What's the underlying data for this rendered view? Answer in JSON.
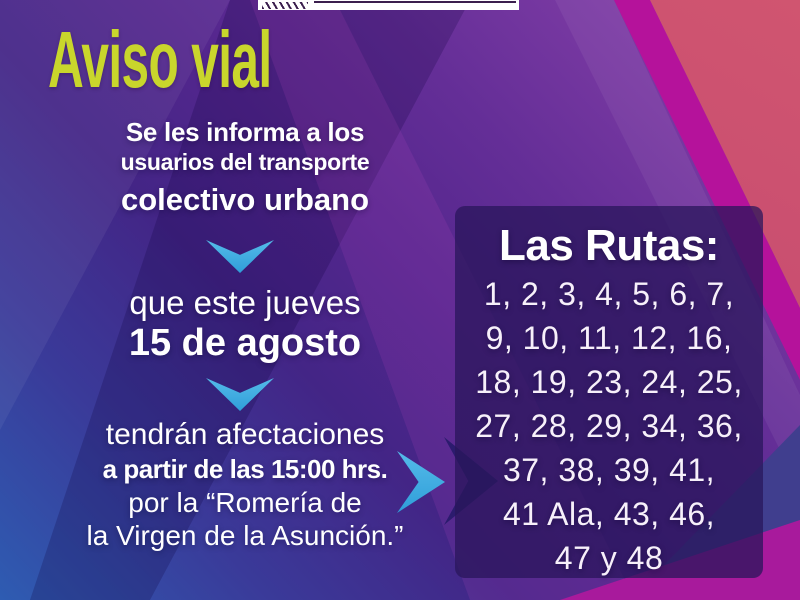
{
  "title": "Aviso vial",
  "intro": {
    "line1": "Se les informa a los",
    "line2": "usuarios del transporte",
    "line3": "colectivo urbano"
  },
  "date": {
    "line1": "que este jueves",
    "line2": "15 de agosto"
  },
  "details": {
    "line1": "tendrán afectaciones",
    "line2": "a partir de las 15:00 hrs.",
    "line3": "por la “Romería de",
    "line4": "la Virgen de la Asunción.”"
  },
  "routes_panel": {
    "heading": "Las Rutas:",
    "lines": [
      "1, 2, 3, 4, 5, 6, 7,",
      "9, 10, 11, 12, 16,",
      "18, 19, 23, 24, 25,",
      "27, 28, 29, 34, 36,",
      "37, 38, 39, 41,",
      "41 Ala, 43, 46,",
      "47 y 48"
    ]
  },
  "icons": {
    "down_arrow": "chevron-down",
    "right_arrow": "chevron-right"
  },
  "colors": {
    "title_green": "#c9d62c",
    "arrow_blue": "#3fafe3",
    "stripe_magenta": "#b5129b",
    "corner_pink": "#c64c6d",
    "background_blue": "#2e5cb2",
    "background_purple": "#5c2b94",
    "panel_overlay": "rgba(40,22,90,0.74)"
  }
}
